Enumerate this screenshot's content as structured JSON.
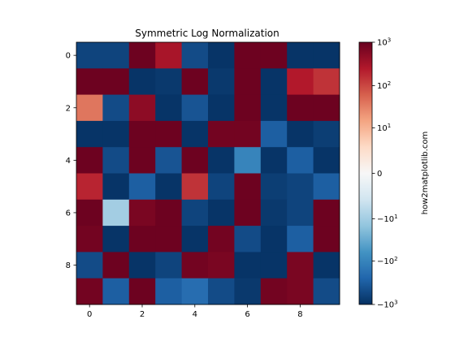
{
  "chart_data": {
    "type": "heatmap",
    "title": "Symmetric Log Normalization",
    "colormap": "RdBu_r",
    "norm": "symlog",
    "x_ticks": [
      0,
      2,
      4,
      6,
      8
    ],
    "y_ticks": [
      0,
      2,
      4,
      6,
      8
    ],
    "x_tick_labels": [
      "0",
      "2",
      "4",
      "6",
      "8"
    ],
    "y_tick_labels": [
      "0",
      "2",
      "4",
      "6",
      "8"
    ],
    "values": [
      [
        -600,
        -600,
        900,
        300,
        -500,
        -900,
        900,
        900,
        -900,
        -900
      ],
      [
        900,
        900,
        -900,
        -800,
        900,
        -800,
        900,
        -900,
        250,
        150
      ],
      [
        40,
        -500,
        500,
        -900,
        -400,
        -900,
        900,
        -900,
        900,
        900
      ],
      [
        -900,
        -900,
        900,
        900,
        -900,
        800,
        800,
        -300,
        -900,
        -700
      ],
      [
        900,
        -500,
        900,
        -400,
        900,
        -900,
        -100,
        -900,
        -300,
        -900
      ],
      [
        200,
        -900,
        -300,
        -900,
        150,
        -600,
        900,
        -700,
        -600,
        -300
      ],
      [
        900,
        -10,
        700,
        900,
        -600,
        -900,
        900,
        -800,
        -600,
        900
      ],
      [
        800,
        -900,
        900,
        900,
        -900,
        800,
        -500,
        -900,
        -300,
        900
      ],
      [
        -500,
        900,
        -900,
        -600,
        800,
        700,
        -900,
        -900,
        700,
        -900
      ],
      [
        800,
        -300,
        900,
        -300,
        -200,
        -500,
        -800,
        800,
        700,
        -500
      ]
    ],
    "colorbar": {
      "label": "how2matplotlib.com",
      "ticks": [
        {
          "value": 1000,
          "base": "10",
          "exp": "3"
        },
        {
          "value": 100,
          "base": "10",
          "exp": "2"
        },
        {
          "value": 10,
          "base": "10",
          "exp": "1"
        },
        {
          "value": 0,
          "text": "0"
        },
        {
          "value": -10,
          "base": "−10",
          "exp": "1"
        },
        {
          "value": -100,
          "base": "−10",
          "exp": "2"
        },
        {
          "value": -1000,
          "base": "−10",
          "exp": "3"
        }
      ],
      "vmin": -1000,
      "vmax": 1000,
      "linthresh": 1
    }
  }
}
